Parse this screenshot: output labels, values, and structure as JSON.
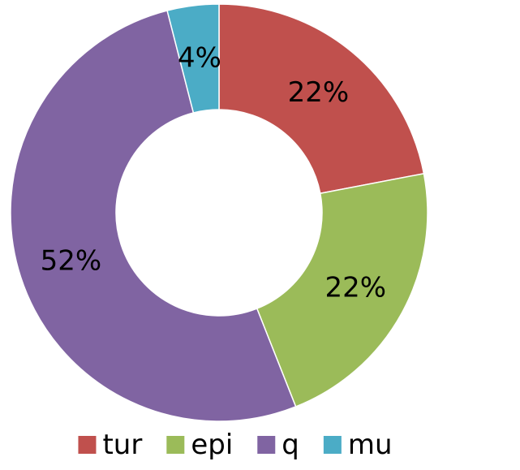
{
  "chart_data": {
    "type": "pie",
    "variant": "doughnut",
    "categories": [
      "tur",
      "epi",
      "q",
      "mu"
    ],
    "values": [
      22,
      22,
      52,
      4
    ],
    "value_labels": [
      "22%",
      "22%",
      "52%",
      "4%"
    ],
    "colors": [
      "#c0504d",
      "#9bbb59",
      "#8064a2",
      "#4bacc6"
    ],
    "legend": {
      "placement": "bottom",
      "entries": [
        "tur",
        "epi",
        "q",
        "mu"
      ]
    }
  }
}
